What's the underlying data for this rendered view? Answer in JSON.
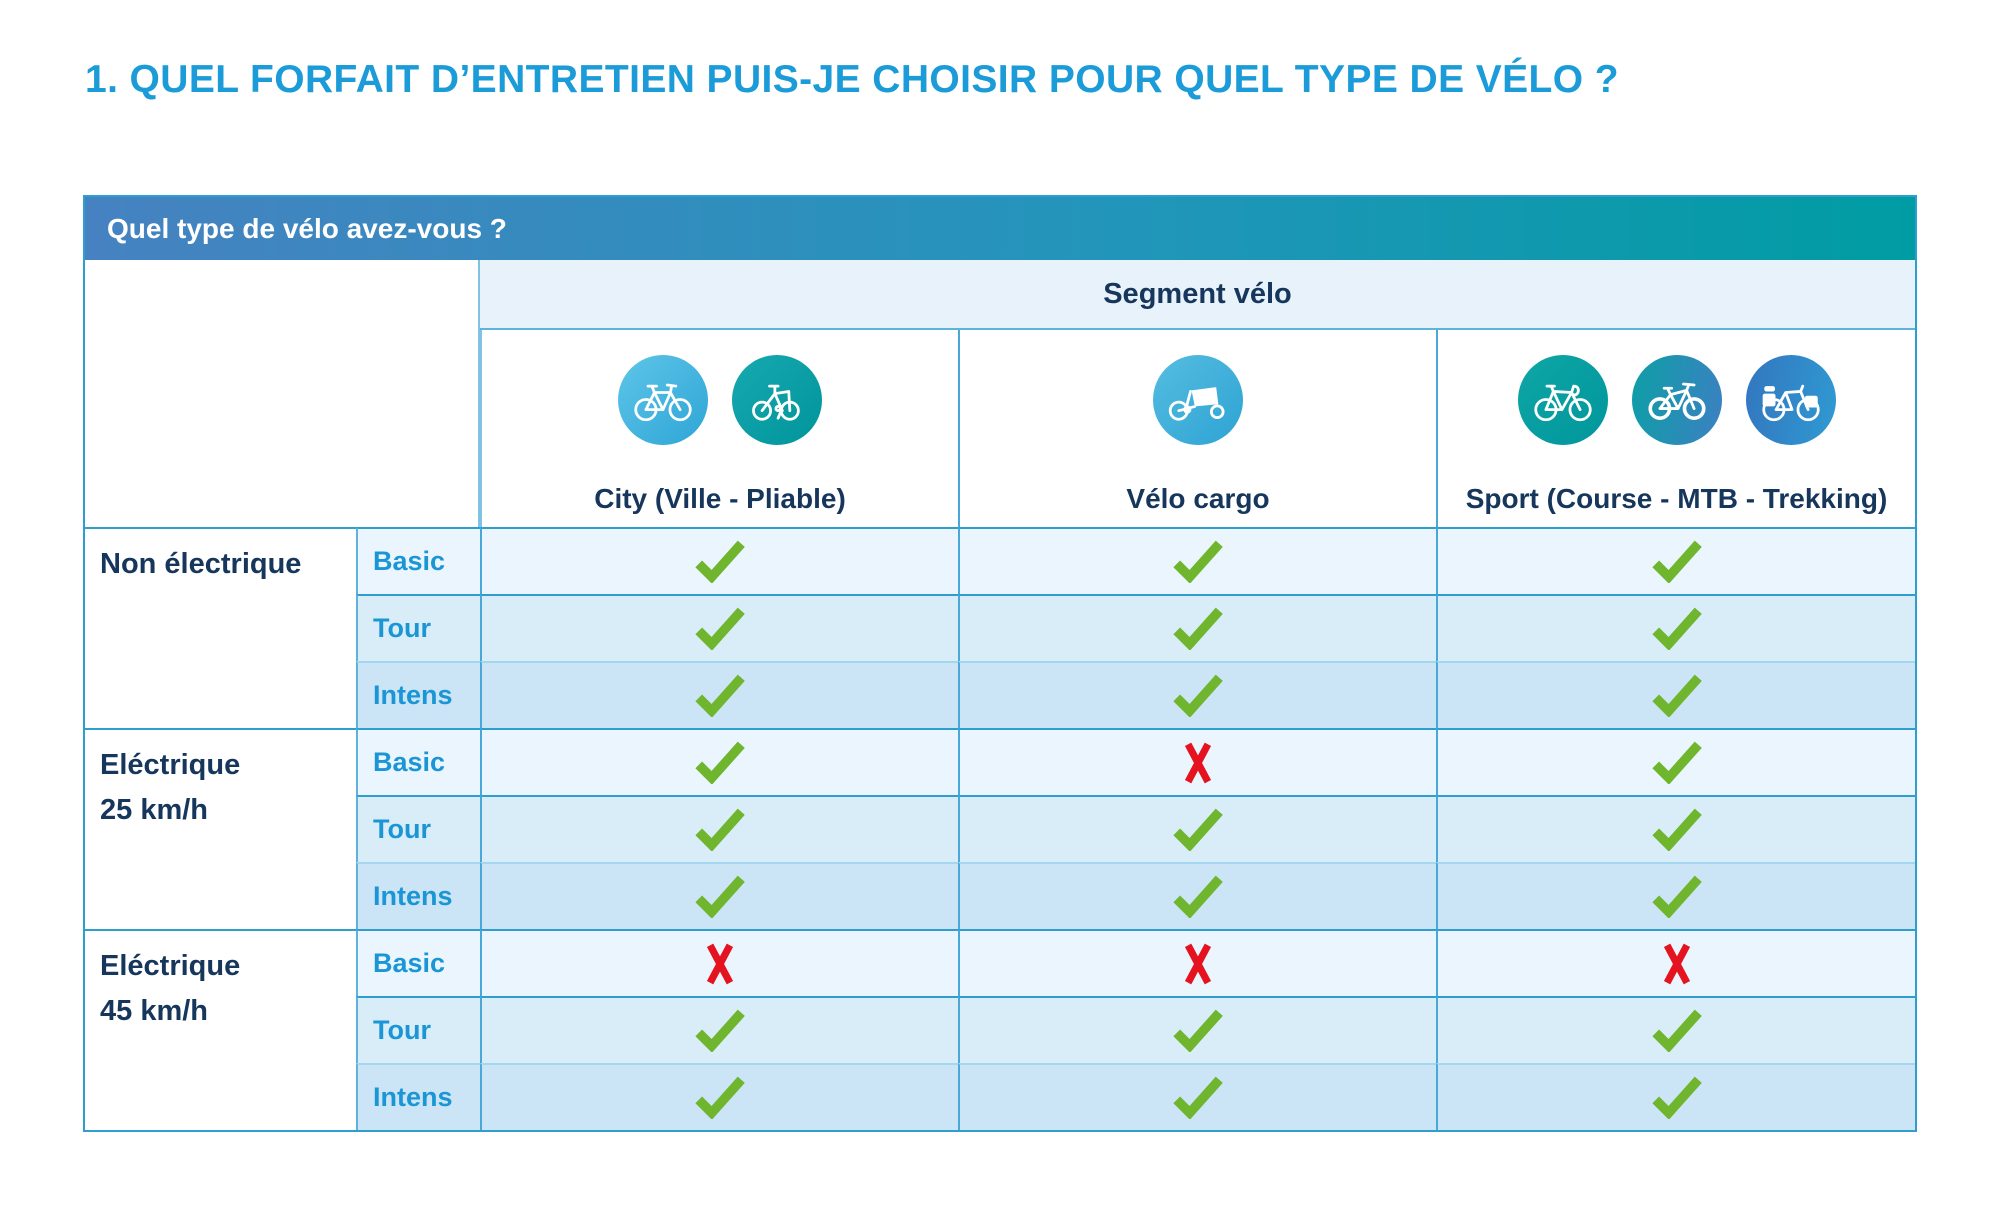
{
  "title": "1. QUEL FORFAIT D’ENTRETIEN PUIS-JE CHOISIR POUR QUEL TYPE DE VÉLO ?",
  "table": {
    "question": "Quel type de vélo avez-vous ?",
    "segment_label": "Segment vélo",
    "columns": [
      {
        "label": "City (Ville - Pliable)",
        "icons": [
          "city-bike-icon",
          "folding-bike-icon"
        ]
      },
      {
        "label": "Vélo cargo",
        "icons": [
          "cargo-bike-icon"
        ]
      },
      {
        "label": "Sport (Course - MTB - Trekking)",
        "icons": [
          "road-bike-icon",
          "mtb-bike-icon",
          "trekking-bike-icon"
        ]
      }
    ],
    "groups": [
      {
        "label_line1": "Non électrique",
        "label_line2": "",
        "rows": [
          {
            "package": "Basic",
            "values": [
              "yes",
              "yes",
              "yes"
            ]
          },
          {
            "package": "Tour",
            "values": [
              "yes",
              "yes",
              "yes"
            ]
          },
          {
            "package": "Intens",
            "values": [
              "yes",
              "yes",
              "yes"
            ]
          }
        ]
      },
      {
        "label_line1": "Eléctrique",
        "label_line2": "25 km/h",
        "rows": [
          {
            "package": "Basic",
            "values": [
              "yes",
              "no",
              "yes"
            ]
          },
          {
            "package": "Tour",
            "values": [
              "yes",
              "yes",
              "yes"
            ]
          },
          {
            "package": "Intens",
            "values": [
              "yes",
              "yes",
              "yes"
            ]
          }
        ]
      },
      {
        "label_line1": "Eléctrique",
        "label_line2": "45 km/h",
        "rows": [
          {
            "package": "Basic",
            "values": [
              "no",
              "no",
              "no"
            ]
          },
          {
            "package": "Tour",
            "values": [
              "yes",
              "yes",
              "yes"
            ]
          },
          {
            "package": "Intens",
            "values": [
              "yes",
              "yes",
              "yes"
            ]
          }
        ]
      }
    ]
  },
  "marks": {
    "yes_symbol": "check-icon",
    "no_symbol": "cross-icon"
  },
  "colors": {
    "title_blue": "#1b9bd8",
    "navy": "#16365c",
    "package_blue": "#1b96d5",
    "header_gradient_left": "#4682c1",
    "header_gradient_right": "#009ca3",
    "check_green": "#6fb52e",
    "cross_red": "#e4131f",
    "row_basic_bg": "#eaf5fd",
    "row_tour_bg": "#d9edf9",
    "row_intens_bg": "#cbe5f6",
    "segment_bg": "#e8f2fb",
    "border_blue": "#2e9ecf"
  }
}
